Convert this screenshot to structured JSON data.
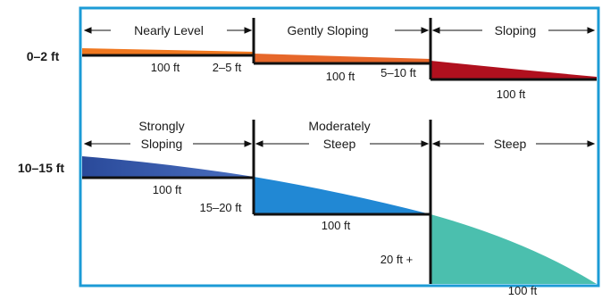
{
  "colors": {
    "frame": "#1c9bd6",
    "nearly_level": "#f07820",
    "gently_sloping": "#e6672a",
    "sloping": "#b0101e",
    "strongly_sloping_dark": "#2a4a9a",
    "strongly_sloping_light": "#4a6fc0",
    "moderately_steep": "#2188d4",
    "steep": "#4bbfae"
  },
  "rows": {
    "top_label": "0–2 ft",
    "bottom_label": "10–15 ft"
  },
  "classes": {
    "nearly_level": "Nearly Level",
    "gently_sloping": "Gently Sloping",
    "sloping": "Sloping",
    "strongly_sloping_line1": "Strongly",
    "strongly_sloping_line2": "Sloping",
    "moderately_steep_line1": "Moderately",
    "moderately_steep_line2": "Steep",
    "steep": "Steep"
  },
  "measurements": {
    "top_run_1": "100 ft",
    "top_rise_1": "2–5 ft",
    "top_run_2": "100 ft",
    "top_rise_2": "5–10 ft",
    "top_run_3": "100 ft",
    "bottom_run_1": "100 ft",
    "bottom_rise_1": "15–20 ft",
    "bottom_run_2": "100 ft",
    "bottom_rise_2": "20 ft +",
    "bottom_run_3": "100 ft"
  }
}
